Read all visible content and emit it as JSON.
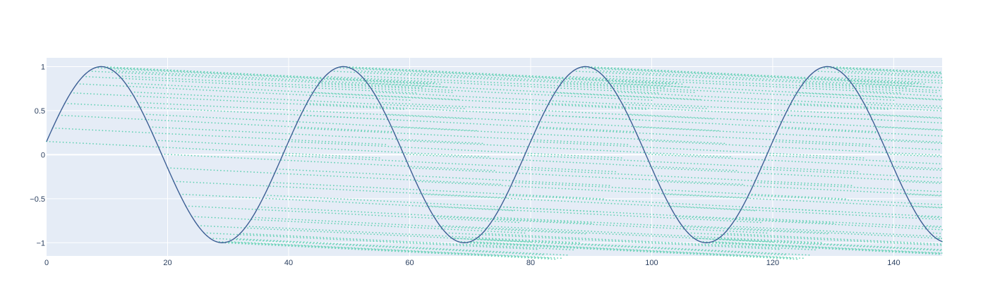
{
  "chart_data": {
    "type": "scatter",
    "title": "",
    "xlabel": "",
    "ylabel": "",
    "xlim": [
      0,
      148
    ],
    "ylim": [
      -1.15,
      1.1
    ],
    "grid": true,
    "legend": "none",
    "x_ticks": [
      0,
      20,
      40,
      60,
      80,
      100,
      120,
      140
    ],
    "x_tick_labels": [
      "0",
      "20",
      "40",
      "60",
      "80",
      "100",
      "120",
      "140"
    ],
    "y_ticks": [
      1,
      0.5,
      0,
      -0.5,
      -1
    ],
    "y_tick_labels": [
      "1",
      "0.5",
      "0",
      "−0.5",
      "−1"
    ],
    "series": [
      {
        "mode": "line",
        "color": "#3d5f95",
        "function": "sin",
        "period": 40,
        "x_start": 0,
        "x_end": 148,
        "y_at_x0": 0.15,
        "peaks_x": [
          9,
          49,
          89,
          129
        ],
        "troughs_x": [
          29,
          69,
          109
        ]
      },
      {
        "mode": "markers",
        "color": "#5fd0b2",
        "function": "fading-trails",
        "trail_slope_per_unit": -0.0034,
        "trail_length_x": 55,
        "x_start": 0,
        "x_end": 148
      }
    ]
  },
  "colors": {
    "plot_bg": "#e5ecf6",
    "grid": "#ffffff",
    "tick_text": "#2a3f5f",
    "line": "#3d5f95",
    "markers": "#5fd0b2"
  }
}
